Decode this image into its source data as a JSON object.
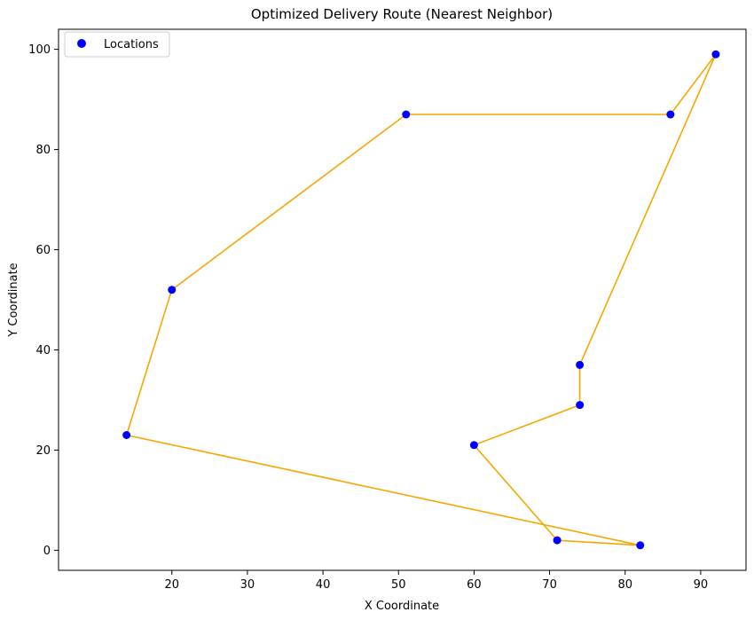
{
  "chart_data": {
    "type": "line",
    "title": "Optimized Delivery Route (Nearest Neighbor)",
    "xlabel": "X Coordinate",
    "ylabel": "Y Coordinate",
    "xlim": [
      5,
      96
    ],
    "ylim": [
      -4,
      104
    ],
    "xticks": [
      20,
      30,
      40,
      50,
      60,
      70,
      80,
      90
    ],
    "yticks": [
      0,
      20,
      40,
      60,
      80,
      100
    ],
    "grid": false,
    "legend_position": "top-left",
    "colors": {
      "points": "#0000ff",
      "route": "#f5a700"
    },
    "series": [
      {
        "name": "Locations",
        "kind": "scatter",
        "x": [
          92,
          86,
          51,
          20,
          14,
          82,
          71,
          60,
          74,
          74
        ],
        "y": [
          99,
          87,
          87,
          52,
          23,
          1,
          2,
          21,
          29,
          37
        ]
      },
      {
        "kind": "line",
        "x": [
          92,
          86,
          51,
          20,
          14,
          82,
          71,
          60,
          74,
          74,
          92
        ],
        "y": [
          99,
          87,
          87,
          52,
          23,
          1,
          2,
          21,
          29,
          37,
          99
        ]
      }
    ]
  }
}
